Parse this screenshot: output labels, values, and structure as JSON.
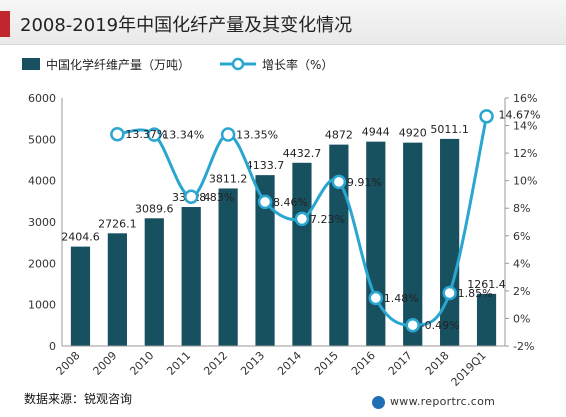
{
  "header": {
    "title": "2008-2019年中国化纤产量及其变化情况",
    "accent_color": "#c0272d"
  },
  "footer": {
    "source": "数据来源：锐观咨询",
    "website": "www.reportrc.com"
  },
  "chart_data": {
    "type": "bar",
    "categories": [
      "2008",
      "2009",
      "2010",
      "2011",
      "2012",
      "2013",
      "2014",
      "2015",
      "2016",
      "2017",
      "2018",
      "2019Q1"
    ],
    "series": [
      {
        "name": "中国化学纤维产量（万吨）",
        "type": "bar",
        "axis": "left",
        "color": "#17505f",
        "values": [
          2404.6,
          2726.1,
          3089.6,
          3362.4,
          3811.2,
          4133.7,
          4432.7,
          4872,
          4944,
          4920,
          5011.1,
          1261.4
        ],
        "labels": [
          "2404.6",
          "2726.1",
          "3089.6",
          "3362.4",
          "3811.2",
          "4133.7",
          "4432.7",
          "4872",
          "4944",
          "4920",
          "5011.1",
          "1261.4"
        ]
      },
      {
        "name": "增长率（%）",
        "type": "line",
        "axis": "right",
        "color": "#2aa6d1",
        "values": [
          null,
          13.37,
          13.34,
          8.83,
          13.35,
          8.46,
          7.23,
          9.91,
          1.48,
          -0.49,
          1.85,
          14.67
        ],
        "labels": [
          "",
          "13.37%",
          "13.34%",
          "8.83%",
          "13.35%",
          "8.46%",
          "7.23%",
          "9.91%",
          "1.48%",
          "-0.49%",
          "1.85%",
          "14.67%"
        ]
      }
    ],
    "y_left": {
      "min": 0,
      "max": 6000,
      "ticks": [
        0,
        1000,
        2000,
        3000,
        4000,
        5000,
        6000
      ],
      "tick_labels": [
        "0",
        "1000",
        "2000",
        "3000",
        "4000",
        "5000",
        "6000"
      ]
    },
    "y_right": {
      "min": -2,
      "max": 16,
      "ticks": [
        -2,
        0,
        2,
        4,
        6,
        8,
        10,
        12,
        14,
        16
      ],
      "tick_labels": [
        "-2%",
        "0%",
        "2%",
        "4%",
        "6%",
        "8%",
        "10%",
        "12%",
        "14%",
        "16%"
      ]
    },
    "grid": false,
    "legend_position": "top-left"
  }
}
